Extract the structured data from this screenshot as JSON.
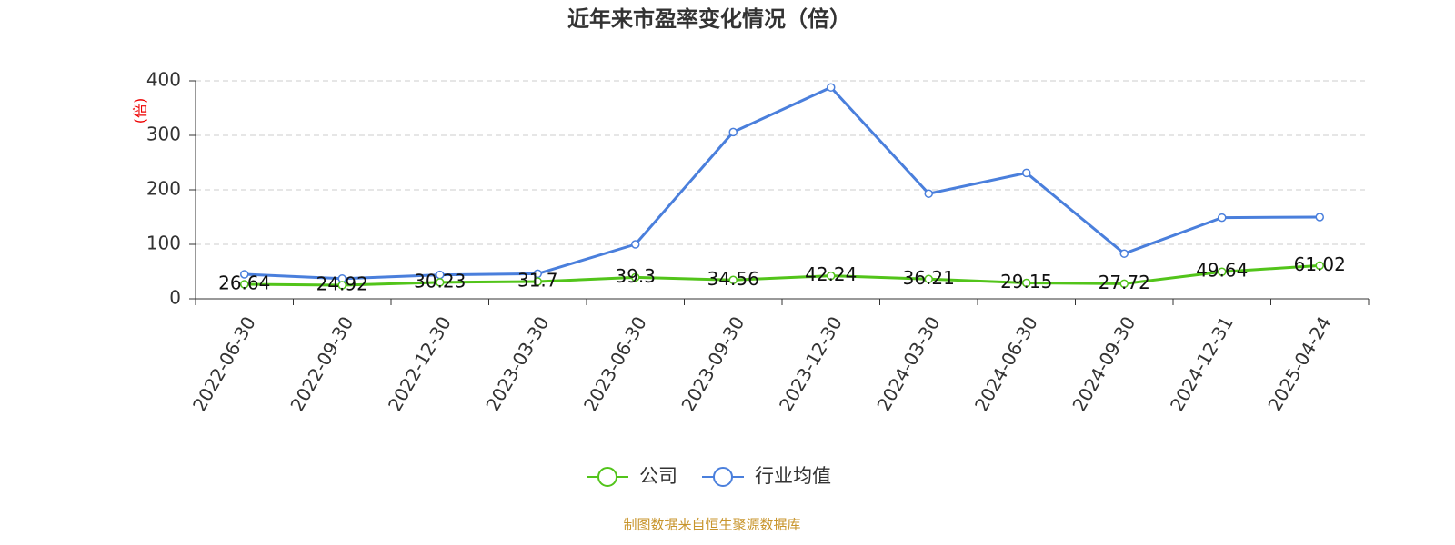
{
  "chart_data": {
    "type": "line",
    "title": "近年来市盈率变化情况（倍）",
    "y_label": "(倍)",
    "source": "制图数据来自恒生聚源数据库",
    "categories": [
      "2022-06-30",
      "2022-09-30",
      "2022-12-30",
      "2023-03-30",
      "2023-06-30",
      "2023-09-30",
      "2023-12-30",
      "2024-03-30",
      "2024-06-30",
      "2024-09-30",
      "2024-12-31",
      "2025-04-24"
    ],
    "series": [
      {
        "name": "公司",
        "color": "#52c41a",
        "values": [
          26.64,
          24.92,
          30.23,
          31.7,
          39.3,
          34.56,
          42.24,
          36.21,
          29.15,
          27.72,
          49.64,
          61.02
        ],
        "show_labels": true
      },
      {
        "name": "行业均值",
        "color": "#4a7fdc",
        "values": [
          45,
          37,
          44,
          46,
          100,
          306,
          388,
          193,
          231,
          83,
          149,
          150
        ],
        "show_labels": false
      }
    ],
    "ylim": [
      0,
      400
    ],
    "yticks": [
      0,
      100,
      200,
      300,
      400
    ],
    "grid": true
  }
}
